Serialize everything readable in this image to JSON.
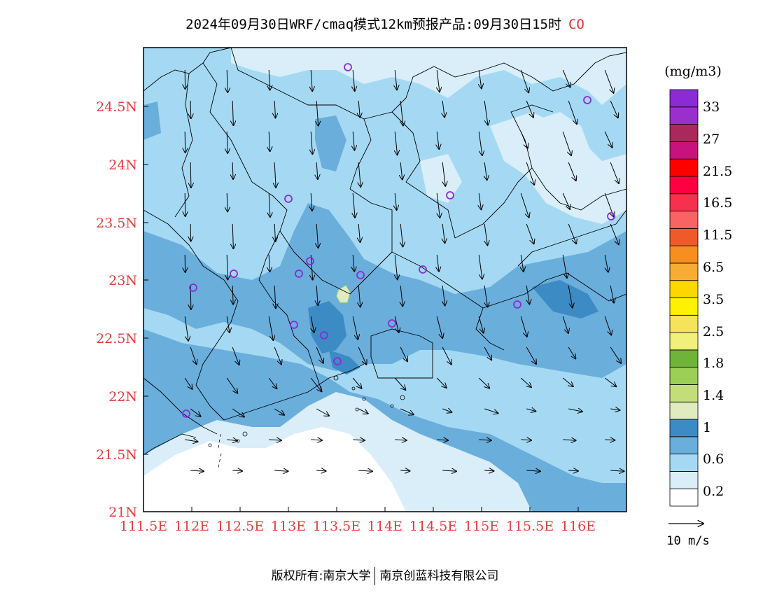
{
  "title": {
    "main": "2024年09月30日WRF/cmaq模式12km预报产品:09月30日15时",
    "species": "CO"
  },
  "axes": {
    "x_ticks": [
      "111.5E",
      "112E",
      "112.5E",
      "113E",
      "113.5E",
      "114E",
      "114.5E",
      "115E",
      "115.5E",
      "116E"
    ],
    "y_ticks": [
      "21N",
      "21.5N",
      "22N",
      "22.5N",
      "23N",
      "23.5N",
      "24N",
      "24.5N"
    ]
  },
  "colorbar": {
    "unit": "(mg/m3)",
    "labels": [
      "0.2",
      "0.6",
      "1",
      "1.4",
      "1.8",
      "2.5",
      "3.5",
      "6.5",
      "11.5",
      "16.5",
      "21.5",
      "27",
      "33"
    ],
    "colors": [
      "#ffffff",
      "#d9eef9",
      "#a5d9f3",
      "#6aaedc",
      "#3d8bc4",
      "#e0ecc0",
      "#c3dd7a",
      "#9ccf55",
      "#6fb33a",
      "#f0f07a",
      "#f5e35a",
      "#fff200",
      "#ffd700",
      "#f7ac33",
      "#f78f1f",
      "#ef5a2a",
      "#f86363",
      "#f6304d",
      "#ff0040",
      "#ff0000",
      "#c7137b",
      "#a9295c",
      "#9a2fcc",
      "#8a2bd6"
    ]
  },
  "vector_legend": {
    "label": "10 m/s"
  },
  "footer": {
    "left": "版权所有:南京大学",
    "right": "南京创蓝科技有限公司"
  },
  "colors": {
    "tick_label": "#e83a3a",
    "station_marker": "#8a2bd6",
    "frame": "#000000"
  }
}
